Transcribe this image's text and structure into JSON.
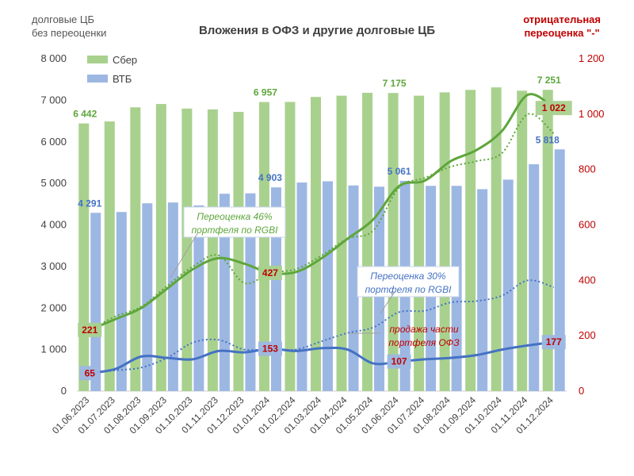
{
  "header": {
    "left_note_line1": "долговые ЦБ",
    "left_note_line2": "без переоценки",
    "right_note_line1": "отрицательная",
    "right_note_line2": "переоценка \"-\""
  },
  "chart_data": {
    "type": "bar",
    "title": "Вложения в ОФЗ и другие долговые ЦБ",
    "categories": [
      "01.06.2023",
      "01.07.2023",
      "01.08.2023",
      "01.09.2023",
      "01.10.2023",
      "01.11.2023",
      "01.12.2023",
      "01.01.2024",
      "01.02.2024",
      "01.03.2024",
      "01.04.2024",
      "01.05.2024",
      "01.06.2024",
      "01.07.2024",
      "01.08.2024",
      "01.09.2024",
      "01.10.2024",
      "01.11.2024",
      "01.12.2024"
    ],
    "series": [
      {
        "name": "Сбер",
        "kind": "bar",
        "axis": "left",
        "color": "#a9d18e",
        "values": [
          6442,
          6490,
          6830,
          6910,
          6800,
          6780,
          6720,
          6957,
          6960,
          7080,
          7110,
          7180,
          7175,
          7110,
          7190,
          7250,
          7310,
          7230,
          7251
        ]
      },
      {
        "name": "ВТБ",
        "kind": "bar",
        "axis": "left",
        "color": "#9db7e3",
        "values": [
          4291,
          4310,
          4520,
          4540,
          4470,
          4750,
          4760,
          4903,
          5020,
          5050,
          4950,
          4920,
          5061,
          4940,
          4940,
          4860,
          5090,
          5460,
          5818
        ]
      },
      {
        "kind": "line",
        "axis": "right",
        "color": "#5ea63b",
        "dashed": false,
        "values": [
          221,
          260,
          300,
          370,
          440,
          480,
          460,
          427,
          430,
          480,
          550,
          620,
          740,
          760,
          830,
          870,
          940,
          1070,
          1022
        ]
      },
      {
        "kind": "line",
        "axis": "right",
        "color": "#5ea63b",
        "dashed": true,
        "values": [
          221,
          270,
          305,
          380,
          450,
          490,
          390,
          427,
          440,
          490,
          550,
          580,
          735,
          770,
          810,
          830,
          860,
          1000,
          930
        ]
      },
      {
        "kind": "line",
        "axis": "right",
        "color": "#4472c4",
        "dashed": false,
        "values": [
          65,
          80,
          125,
          120,
          115,
          145,
          140,
          153,
          145,
          155,
          150,
          100,
          107,
          115,
          120,
          130,
          150,
          165,
          177
        ]
      },
      {
        "kind": "line",
        "axis": "right",
        "color": "#4472c4",
        "dashed": true,
        "values": [
          65,
          75,
          85,
          120,
          175,
          185,
          150,
          153,
          150,
          180,
          210,
          230,
          285,
          290,
          320,
          325,
          345,
          400,
          375
        ]
      }
    ],
    "data_labels": [
      {
        "series": 0,
        "index": 0,
        "text": "6 442"
      },
      {
        "series": 0,
        "index": 7,
        "text": "6 957"
      },
      {
        "series": 0,
        "index": 12,
        "text": "7 175"
      },
      {
        "series": 0,
        "index": 18,
        "text": "7 251"
      },
      {
        "series": 1,
        "index": 0,
        "text": "4 291"
      },
      {
        "series": 1,
        "index": 7,
        "text": "4 903"
      },
      {
        "series": 1,
        "index": 12,
        "text": "5 061"
      },
      {
        "series": 1,
        "index": 18,
        "text": "5 818"
      }
    ],
    "line_labels": [
      {
        "series": 2,
        "index": 0,
        "text": "221"
      },
      {
        "series": 2,
        "index": 7,
        "text": "427"
      },
      {
        "series": 2,
        "index": 18,
        "text": "1 022"
      },
      {
        "series": 4,
        "index": 0,
        "text": "65"
      },
      {
        "series": 4,
        "index": 7,
        "text": "153"
      },
      {
        "series": 4,
        "index": 12,
        "text": "107"
      },
      {
        "series": 4,
        "index": 18,
        "text": "177"
      }
    ],
    "annotations": [
      {
        "text_line1": "Переоценка 46%",
        "text_line2": "портфеля по RGBI",
        "color": "#5ea63b",
        "points_to_index": 5
      },
      {
        "text_line1": "Переоценка 30%",
        "text_line2": "портфеля по RGBI",
        "color": "#4472c4",
        "points_to_index": 14
      },
      {
        "text_line1": "продажа части",
        "text_line2": "портфеля ОФЗ",
        "color": "#c00000",
        "points_to_index": 10
      }
    ],
    "y_left": {
      "min": 0,
      "max": 8000,
      "ticks": [
        "0",
        "1 000",
        "2 000",
        "3 000",
        "4 000",
        "5 000",
        "6 000",
        "7 000",
        "8 000"
      ]
    },
    "y_right": {
      "min": 0,
      "max": 1200,
      "ticks": [
        "0",
        "200",
        "400",
        "600",
        "800",
        "1 000",
        "1 200"
      ]
    },
    "legend": {
      "position": "top-left",
      "items": [
        "Сбер",
        "ВТБ"
      ]
    },
    "grid": false
  }
}
